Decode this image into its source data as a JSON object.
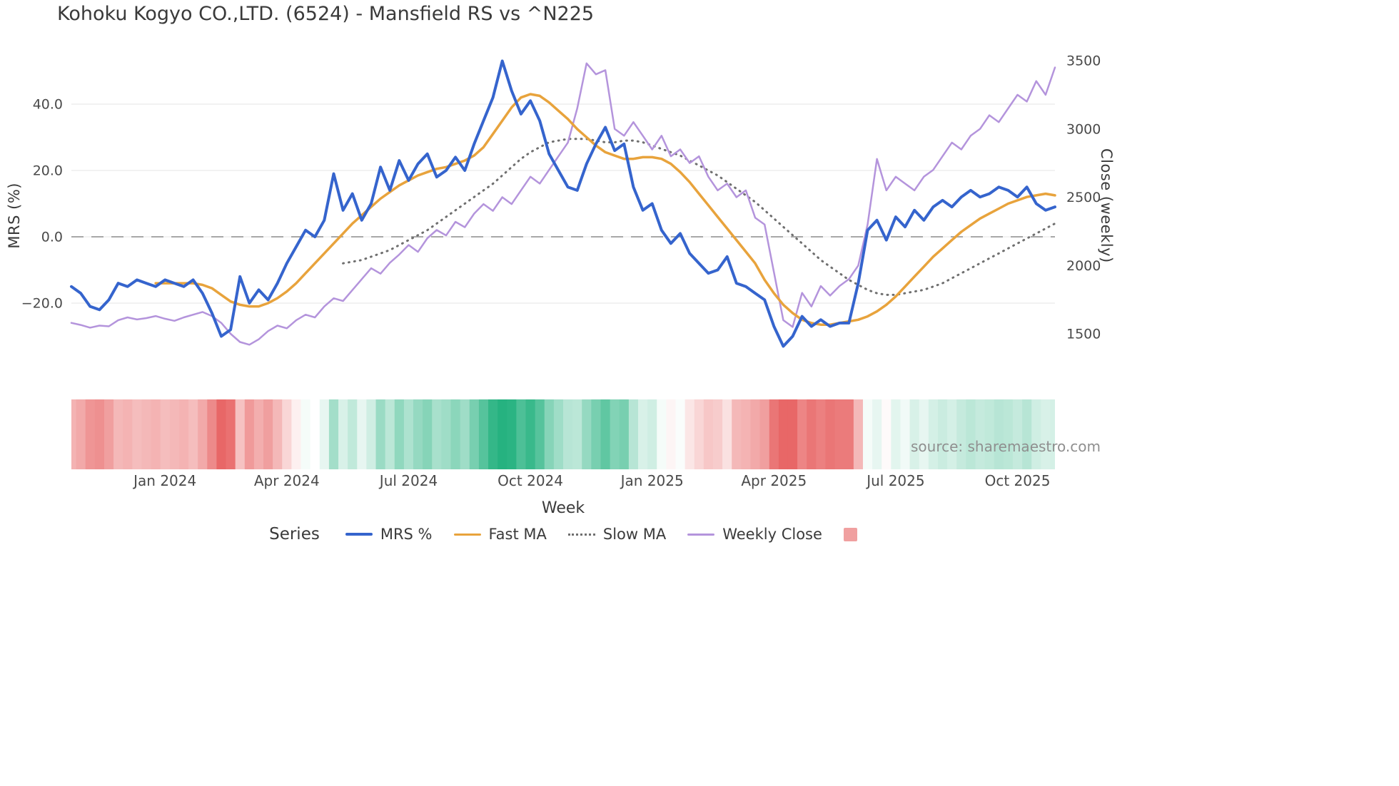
{
  "source_credit": "source: sharemaestro.com",
  "legend": {
    "label": "Series",
    "items": [
      {
        "label": "MRS %",
        "kind": "line",
        "color": "#3564cd",
        "thickness": 4
      },
      {
        "label": "Fast MA",
        "kind": "line",
        "color": "#e8a33c",
        "thickness": 3
      },
      {
        "label": "Slow MA",
        "kind": "dotted",
        "color": "#6f6f6f",
        "thickness": 3
      },
      {
        "label": "Weekly Close",
        "kind": "line",
        "color": "#b494dc",
        "thickness": 3
      },
      {
        "label": "",
        "kind": "swatch",
        "color": "#f0a0a0"
      }
    ]
  },
  "chart_data": {
    "type": "line",
    "title": "Kohoku Kogyo CO.,LTD. (6524) - Mansfield RS vs ^N225",
    "xlabel": "Week",
    "ylabel_left": "MRS (%)",
    "ylabel_right": "Close (weekly)",
    "x_start_date": "2023-10-23",
    "x_interval": "weekly",
    "n_points": 106,
    "x_ticks": {
      "indices": [
        10,
        23,
        36,
        49,
        62,
        75,
        88,
        101
      ],
      "labels": [
        "Jan 2024",
        "Apr 2024",
        "Jul 2024",
        "Oct 2024",
        "Jan 2025",
        "Apr 2025",
        "Jul 2025",
        "Oct 2025"
      ]
    },
    "left_axis": {
      "tick_values": [
        40,
        20,
        0,
        -20
      ],
      "tick_labels": [
        "40.0",
        "20.0",
        "0.0",
        "−20.0"
      ],
      "range": [
        -36,
        57
      ]
    },
    "right_axis": {
      "tick_values": [
        3500,
        3000,
        2500,
        2000,
        1500
      ],
      "tick_labels": [
        "3500",
        "3000",
        "2500",
        "2000",
        "1500"
      ],
      "range": [
        1380,
        3550
      ]
    },
    "zero_line": true,
    "grid": "horizontal",
    "series": [
      {
        "name": "MRS %",
        "axis": "left",
        "color": "#3564cd",
        "width": 4,
        "dash": null,
        "values": [
          -15,
          -17,
          -21,
          -22,
          -19,
          -14,
          -15,
          -13,
          -14,
          -15,
          -13,
          -14,
          -15,
          -13,
          -17,
          -23,
          -30,
          -28,
          -12,
          -20,
          -16,
          -19,
          -14,
          -8,
          -3,
          2,
          0,
          5,
          19,
          8,
          13,
          5,
          10,
          21,
          14,
          23,
          17,
          22,
          25,
          18,
          20,
          24,
          20,
          28,
          35,
          42,
          53,
          44,
          37,
          41,
          35,
          25,
          20,
          15,
          14,
          22,
          28,
          33,
          26,
          28,
          15,
          8,
          10,
          2,
          -2,
          1,
          -5,
          -8,
          -11,
          -10,
          -6,
          -14,
          -15,
          -17,
          -19,
          -27,
          -33,
          -30,
          -24,
          -27,
          -25,
          -27,
          -26,
          -26,
          -14,
          2,
          5,
          -1,
          6,
          3,
          8,
          5,
          9,
          11,
          9,
          12,
          14,
          12,
          13,
          15,
          14,
          12,
          15,
          10,
          8,
          9
        ]
      },
      {
        "name": "Fast MA",
        "axis": "left",
        "color": "#e8a33c",
        "width": 3.5,
        "dash": null,
        "values": [
          null,
          null,
          null,
          null,
          null,
          null,
          null,
          null,
          null,
          -14,
          -14,
          -14,
          -14,
          -14,
          -14.5,
          -15.5,
          -17.5,
          -19.5,
          -20.5,
          -21,
          -21,
          -20,
          -18.5,
          -16.5,
          -14,
          -11,
          -8,
          -5,
          -2,
          1,
          4,
          6.5,
          9,
          11.5,
          13.5,
          15.5,
          17,
          18.5,
          19.5,
          20.5,
          21,
          22,
          23,
          24.5,
          27,
          31,
          35,
          39,
          42,
          43,
          42.5,
          40.5,
          38,
          35.5,
          32.5,
          30,
          27.5,
          25.5,
          24.5,
          23.5,
          23.5,
          24,
          24,
          23.5,
          22,
          19.5,
          16.5,
          13,
          9.5,
          6,
          2.5,
          -1,
          -4.5,
          -8,
          -13,
          -17,
          -20.5,
          -23,
          -25,
          -26,
          -26.5,
          -26.5,
          -26,
          -25.5,
          -25,
          -24,
          -22.5,
          -20.5,
          -18,
          -15,
          -12,
          -9,
          -6,
          -3.5,
          -1,
          1.5,
          3.5,
          5.5,
          7,
          8.5,
          10,
          11,
          12,
          12.5,
          13,
          12.5
        ]
      },
      {
        "name": "Slow MA",
        "axis": "left",
        "color": "#6f6f6f",
        "width": 3,
        "dash": "1 7",
        "values": [
          null,
          null,
          null,
          null,
          null,
          null,
          null,
          null,
          null,
          null,
          null,
          null,
          null,
          null,
          null,
          null,
          null,
          null,
          null,
          null,
          null,
          null,
          null,
          null,
          null,
          null,
          null,
          null,
          null,
          -8,
          -7.5,
          -7,
          -6,
          -5,
          -4,
          -2.5,
          -1,
          0.5,
          2,
          4,
          6,
          8,
          10,
          12,
          14,
          16,
          18.5,
          21,
          23.5,
          25.5,
          27,
          28.5,
          29,
          29.5,
          29.5,
          29.5,
          29,
          28.5,
          28.5,
          29,
          29,
          28.5,
          27.5,
          26.5,
          25.5,
          24.5,
          23,
          21.5,
          20,
          18.5,
          16.5,
          14.5,
          12.5,
          10.5,
          8,
          5.5,
          3,
          0.5,
          -2,
          -4.5,
          -7,
          -9,
          -11,
          -13,
          -14.5,
          -16,
          -17,
          -17.5,
          -17.5,
          -17,
          -16.5,
          -16,
          -15,
          -14,
          -12.5,
          -11,
          -9.5,
          -8,
          -6.5,
          -5,
          -3.5,
          -2,
          -0.5,
          1,
          2.5,
          4
        ]
      },
      {
        "name": "Weekly Close",
        "axis": "right",
        "color": "#b494dc",
        "width": 2.5,
        "dash": null,
        "values": [
          1580,
          1565,
          1545,
          1560,
          1555,
          1600,
          1620,
          1605,
          1615,
          1630,
          1610,
          1595,
          1620,
          1640,
          1660,
          1630,
          1580,
          1500,
          1440,
          1420,
          1460,
          1520,
          1560,
          1540,
          1600,
          1640,
          1620,
          1700,
          1760,
          1740,
          1820,
          1900,
          1980,
          1940,
          2020,
          2080,
          2150,
          2100,
          2200,
          2260,
          2220,
          2320,
          2280,
          2380,
          2450,
          2400,
          2500,
          2450,
          2550,
          2650,
          2600,
          2700,
          2800,
          2900,
          3150,
          3480,
          3400,
          3430,
          3000,
          2950,
          3050,
          2950,
          2850,
          2950,
          2800,
          2850,
          2750,
          2800,
          2650,
          2550,
          2600,
          2500,
          2550,
          2350,
          2300,
          1950,
          1600,
          1550,
          1800,
          1700,
          1850,
          1780,
          1850,
          1900,
          2000,
          2300,
          2780,
          2550,
          2650,
          2600,
          2550,
          2650,
          2700,
          2800,
          2900,
          2850,
          2950,
          3000,
          3100,
          3050,
          3150,
          3250,
          3200,
          3350,
          3250,
          3450
        ]
      }
    ],
    "heatmap": {
      "description": "weekly relative-strength heat strip, diverging red-to-green",
      "values_from_series": "MRS %",
      "negative_color": "#e86767",
      "positive_color": "#26b280",
      "neutral_color": "#ffffff",
      "negative_saturation_at": -30,
      "positive_saturation_at": 45
    }
  }
}
